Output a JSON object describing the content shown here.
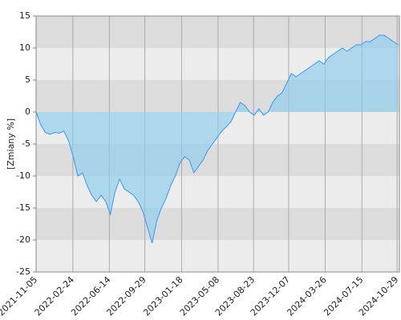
{
  "chart_data": {
    "type": "area",
    "y_label": "[Zmiany %]",
    "x": [
      "2021-11-05",
      "2021-11-19",
      "2021-12-03",
      "2021-12-17",
      "2021-12-31",
      "2022-01-14",
      "2022-01-28",
      "2022-02-11",
      "2022-02-25",
      "2022-03-11",
      "2022-03-25",
      "2022-04-08",
      "2022-04-22",
      "2022-05-06",
      "2022-05-20",
      "2022-06-03",
      "2022-06-17",
      "2022-07-01",
      "2022-07-15",
      "2022-07-29",
      "2022-08-12",
      "2022-08-26",
      "2022-09-09",
      "2022-09-23",
      "2022-10-07",
      "2022-10-21",
      "2022-11-04",
      "2022-11-18",
      "2022-12-02",
      "2022-12-16",
      "2022-12-30",
      "2023-01-13",
      "2023-01-27",
      "2023-02-10",
      "2023-02-24",
      "2023-03-10",
      "2023-03-24",
      "2023-04-07",
      "2023-04-21",
      "2023-05-05",
      "2023-05-19",
      "2023-06-02",
      "2023-06-16",
      "2023-06-30",
      "2023-07-14",
      "2023-07-28",
      "2023-08-11",
      "2023-08-25",
      "2023-09-08",
      "2023-09-22",
      "2023-10-06",
      "2023-10-20",
      "2023-11-03",
      "2023-11-17",
      "2023-12-01",
      "2023-12-15",
      "2023-12-29",
      "2024-01-12",
      "2024-01-26",
      "2024-02-09",
      "2024-02-23",
      "2024-03-08",
      "2024-03-22",
      "2024-04-05",
      "2024-04-19",
      "2024-05-03",
      "2024-05-17",
      "2024-05-31",
      "2024-06-14",
      "2024-06-28",
      "2024-07-12",
      "2024-07-26",
      "2024-08-09",
      "2024-08-23",
      "2024-09-06",
      "2024-09-20",
      "2024-10-04",
      "2024-10-18",
      "2024-11-01"
    ],
    "series": [
      {
        "color": "#3399ff",
        "fill": "rgba(140,205,235,0.65)",
        "values": [
          0,
          -2,
          -3.2,
          -3.5,
          -3.2,
          -3.3,
          -3,
          -4.5,
          -7,
          -10,
          -9.5,
          -11.5,
          -13,
          -14,
          -13,
          -14,
          -16,
          -12.5,
          -10.5,
          -12,
          -12.5,
          -13,
          -14,
          -15.5,
          -18,
          -20.5,
          -17,
          -15,
          -13.5,
          -11.5,
          -10,
          -8,
          -7,
          -7.5,
          -9.5,
          -8.5,
          -7.5,
          -6,
          -5,
          -4,
          -3,
          -2.3,
          -1.5,
          0,
          1.5,
          1,
          0,
          -0.5,
          0.5,
          -0.5,
          0,
          1.5,
          2.5,
          3,
          4.5,
          6,
          5.5,
          6,
          6.5,
          7,
          7.5,
          8,
          7.5,
          8.5,
          9,
          9.5,
          10,
          9.5,
          10,
          10.5,
          10.5,
          11,
          11,
          11.5,
          12,
          12,
          11.5,
          11,
          10.5
        ]
      }
    ],
    "xlim": [
      "2021-11-05",
      "2024-11-05"
    ],
    "xticks": [
      "2021-11-05",
      "2022-02-24",
      "2022-06-14",
      "2022-09-29",
      "2023-01-18",
      "2023-05-08",
      "2023-08-23",
      "2023-12-07",
      "2024-03-26",
      "2024-07-15",
      "2024-10-29"
    ],
    "ylim": [
      -25,
      15
    ],
    "yticks": [
      -25,
      -20,
      -15,
      -10,
      -5,
      0,
      5,
      10,
      15
    ],
    "grid": true
  }
}
